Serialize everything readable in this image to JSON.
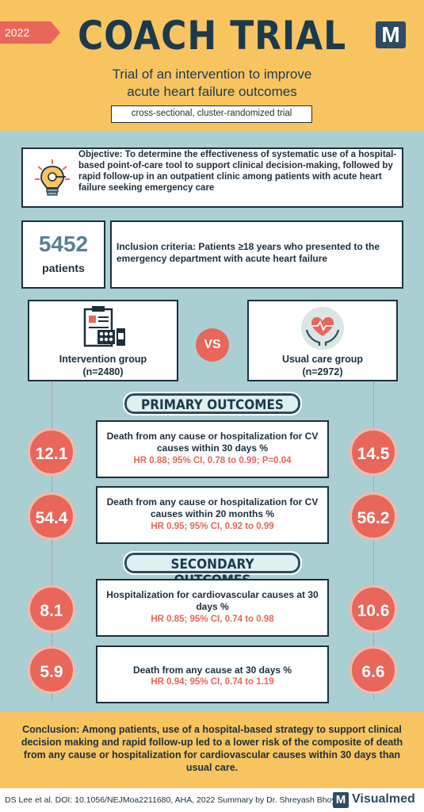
{
  "header": {
    "year": "2022",
    "title": "COACH TRIAL",
    "logo_letter": "M",
    "subtitle_line1": "Trial of an intervention to improve",
    "subtitle_line2": "acute heart failure outcomes",
    "design": "cross-sectional, cluster-randomized trial"
  },
  "objective": {
    "icon": "lightbulb-icon",
    "text": "Objective: To determine the effectiveness of systematic use of a hospital-based point-of-care tool to support clinical decision-making, followed by rapid follow-up in an outpatient clinic among patients with acute heart failure seeking emergency care"
  },
  "patients": {
    "count": "5452",
    "label": "patients"
  },
  "inclusion": {
    "text": "Inclusion criteria: Patients ≥18 years who presented to the emergency department with acute heart failure"
  },
  "groups": {
    "intervention": {
      "name": "Intervention group",
      "n": "(n=2480)",
      "icon": "clipboard-medication-icon"
    },
    "usual": {
      "name": "Usual care group",
      "n": "(n=2972)",
      "icon": "heart-hands-icon"
    },
    "vs": "VS"
  },
  "primary": {
    "title": "PRIMARY OUTCOMES",
    "items": [
      {
        "intervention": "12.1",
        "usual": "14.5",
        "title": "Death from any cause or hospitalization for CV causes within 30 days %",
        "stat": "HR 0.88; 95% CI, 0.78 to 0.99; P=0.04"
      },
      {
        "intervention": "54.4",
        "usual": "56.2",
        "title": "Death from any cause or hospitalization for CV causes within 20 months %",
        "stat": "HR 0.95; 95% CI, 0.92 to 0.99"
      }
    ]
  },
  "secondary": {
    "title": "SECONDARY OUTCOMES",
    "items": [
      {
        "intervention": "8.1",
        "usual": "10.6",
        "title": "Hospitalization for cardiovascular causes at 30 days %",
        "stat": "HR 0.85; 95% CI, 0.74 to 0.98"
      },
      {
        "intervention": "5.9",
        "usual": "6.6",
        "title": "Death from any cause at 30 days %",
        "stat": "HR 0.94; 95% CI, 0.74 to 1.19"
      }
    ]
  },
  "conclusion": {
    "text": "Conclusion: Among patients, use of a hospital-based strategy to support clinical decision making and rapid follow-up led to a lower risk of the composite of death from any cause or hospitalization for cardiovascular causes within 30 days than usual care."
  },
  "footer": {
    "citation": "DS Lee et al. DOI: 10.1056/NEJMoa2211680,  AHA, 2022 Summary by Dr. Shreyash Bhoyar",
    "logo_letter": "M",
    "brand": "Visualmed"
  },
  "colors": {
    "accent": "#e8665a",
    "header_bg": "#f8c460",
    "page_bg": "#a9cfd2",
    "dark": "#1c2f3d"
  }
}
